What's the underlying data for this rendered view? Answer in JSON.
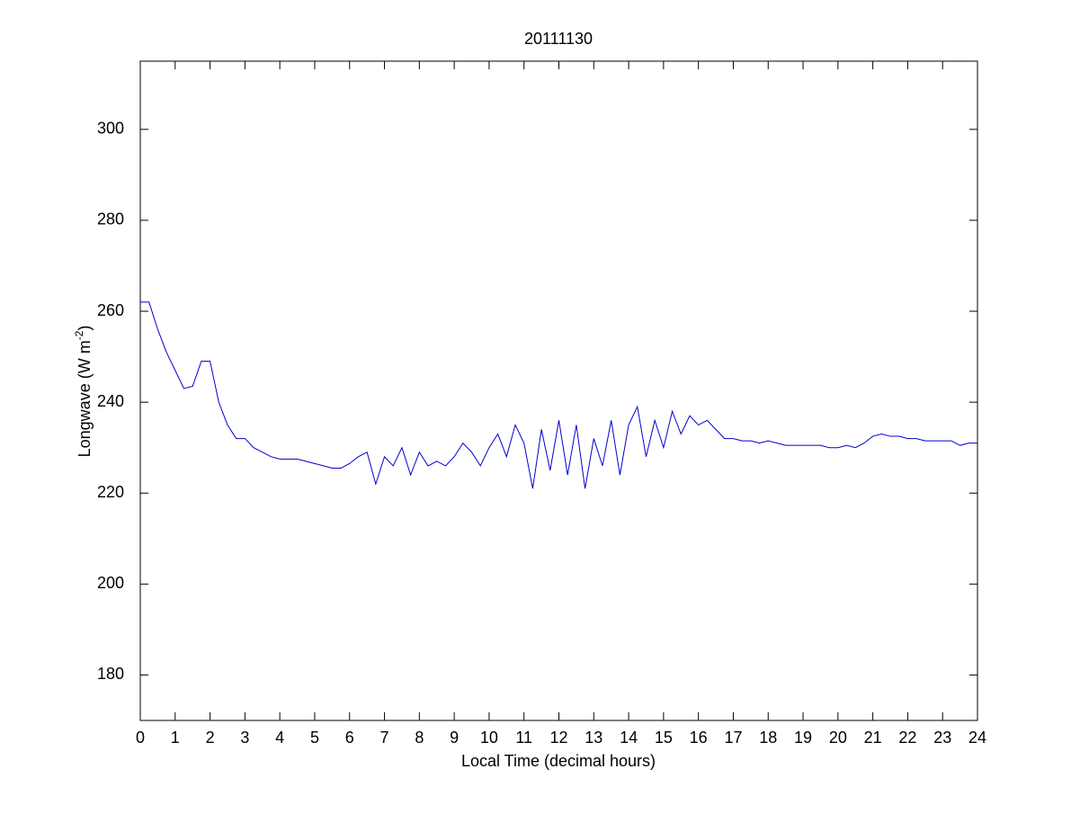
{
  "chart_data": {
    "type": "line",
    "title": "20111130",
    "xlabel": "Local Time (decimal hours)",
    "ylabel": [
      "Longwave (W m",
      "-2",
      ")"
    ],
    "color": "#0000cc",
    "xlim": [
      0,
      24
    ],
    "ylim": [
      170,
      315
    ],
    "xticks": [
      0,
      1,
      2,
      3,
      4,
      5,
      6,
      7,
      8,
      9,
      10,
      11,
      12,
      13,
      14,
      15,
      16,
      17,
      18,
      19,
      20,
      21,
      22,
      23,
      24
    ],
    "yticks": [
      180,
      200,
      220,
      240,
      260,
      280,
      300
    ],
    "x": [
      0,
      0.25,
      0.5,
      0.75,
      1,
      1.25,
      1.5,
      1.75,
      2,
      2.25,
      2.5,
      2.75,
      3,
      3.25,
      3.5,
      3.75,
      4,
      4.25,
      4.5,
      4.75,
      5,
      5.25,
      5.5,
      5.75,
      6,
      6.25,
      6.5,
      6.75,
      7,
      7.25,
      7.5,
      7.75,
      8,
      8.25,
      8.5,
      8.75,
      9,
      9.25,
      9.5,
      9.75,
      10,
      10.25,
      10.5,
      10.75,
      11,
      11.25,
      11.5,
      11.75,
      12,
      12.25,
      12.5,
      12.75,
      13,
      13.25,
      13.5,
      13.75,
      14,
      14.25,
      14.5,
      14.75,
      15,
      15.25,
      15.5,
      15.75,
      16,
      16.25,
      16.5,
      16.75,
      17,
      17.25,
      17.5,
      17.75,
      18,
      18.25,
      18.5,
      18.75,
      19,
      19.25,
      19.5,
      19.75,
      20,
      20.25,
      20.5,
      20.75,
      21,
      21.25,
      21.5,
      21.75,
      22,
      22.25,
      22.5,
      22.75,
      23,
      23.25,
      23.5,
      23.75,
      24
    ],
    "values": [
      262,
      262,
      256,
      251,
      247,
      243,
      243.5,
      249,
      249,
      240,
      235,
      232,
      232,
      230,
      229,
      228,
      227.5,
      227.5,
      227.5,
      227,
      226.5,
      226,
      225.5,
      225.5,
      226.5,
      228,
      229,
      222,
      228,
      226,
      230,
      224,
      229,
      226,
      227,
      226,
      228,
      231,
      229,
      226,
      230,
      233,
      228,
      235,
      231,
      221,
      234,
      225,
      236,
      224,
      235,
      221,
      232,
      226,
      236,
      224,
      235,
      239,
      228,
      236,
      230,
      238,
      233,
      237,
      235,
      236,
      234,
      232,
      232,
      231.5,
      231.5,
      231,
      231.5,
      231,
      230.5,
      230.5,
      230.5,
      230.5,
      230.5,
      230,
      230,
      230.5,
      230,
      231,
      232.5,
      233,
      232.5,
      232.5,
      232,
      232,
      231.5,
      231.5,
      231.5,
      231.5,
      230.5,
      231,
      231
    ]
  }
}
